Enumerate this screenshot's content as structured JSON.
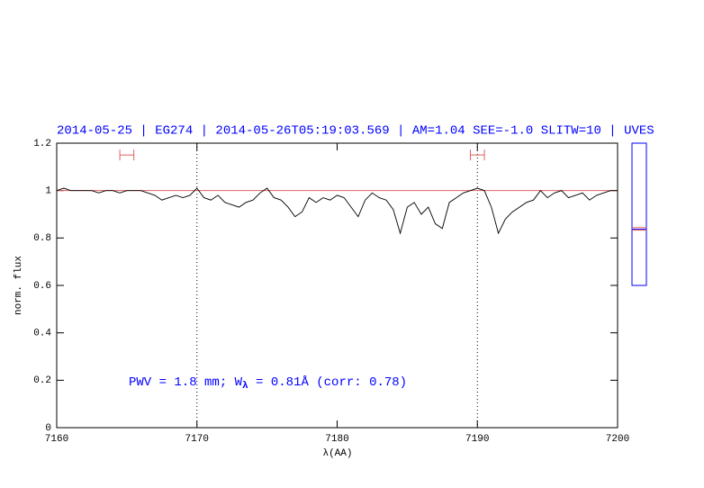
{
  "chart_data": {
    "type": "line",
    "title": "2014-05-25 | EG274 | 2014-05-26T05:19:03.569 | AM=1.04  SEE=-1.0  SLITW=10 | UVES",
    "xlabel": "λ(AA)",
    "ylabel": "norm. flux",
    "annotation": [
      "PWV = 1.8 mm; W",
      "λ",
      " = 0.81Å (corr: 0.78)"
    ],
    "xlim": [
      7160,
      7200
    ],
    "ylim": [
      0,
      1.2
    ],
    "xticks": [
      7160,
      7170,
      7180,
      7190,
      7200
    ],
    "yticks": [
      0,
      0.2,
      0.4,
      0.6,
      0.8,
      1,
      1.2
    ],
    "continuum": {
      "value": 1,
      "color": "#e06060"
    },
    "vlines": [
      7170,
      7190
    ],
    "ranges": [
      {
        "x": [
          7164.5,
          7165.5
        ],
        "y": 1.15
      },
      {
        "x": [
          7189.5,
          7190.5
        ],
        "y": 1.15
      }
    ],
    "range_color": "#e06060",
    "side_panel": {
      "ylim": [
        0.6,
        1.2
      ],
      "color": "#0000ff",
      "lines": [
        {
          "value": 0.844,
          "color": "#e06060"
        },
        {
          "value": 0.837,
          "color": "#0000ff"
        },
        {
          "value": 0.833,
          "color": "#e06060"
        }
      ]
    },
    "series": [
      {
        "color": "#000000",
        "x": [
          7160,
          7160.5,
          7161,
          7161.5,
          7162,
          7162.5,
          7163,
          7163.5,
          7164,
          7164.5,
          7165,
          7165.5,
          7166,
          7166.5,
          7167,
          7167.5,
          7168,
          7168.5,
          7169,
          7169.5,
          7170,
          7170.5,
          7171,
          7171.5,
          7172,
          7172.5,
          7173,
          7173.5,
          7174,
          7174.5,
          7175,
          7175.5,
          7176,
          7176.5,
          7177,
          7177.5,
          7178,
          7178.5,
          7179,
          7179.5,
          7180,
          7180.5,
          7181,
          7181.5,
          7182,
          7182.5,
          7183,
          7183.5,
          7184,
          7184.5,
          7185,
          7185.5,
          7186,
          7186.5,
          7187,
          7187.5,
          7188,
          7188.5,
          7189,
          7189.5,
          7190,
          7190.5,
          7191,
          7191.5,
          7192,
          7192.5,
          7193,
          7193.5,
          7194,
          7194.5,
          7195,
          7195.5,
          7196,
          7196.5,
          7197,
          7197.5,
          7198,
          7198.5,
          7199,
          7199.5,
          7200
        ],
        "values": [
          1.0,
          1.01,
          1.0,
          1.0,
          1.0,
          1.0,
          0.99,
          1.0,
          1.0,
          0.99,
          1.0,
          1.0,
          1.0,
          0.99,
          0.98,
          0.96,
          0.97,
          0.98,
          0.97,
          0.98,
          1.01,
          0.97,
          0.96,
          0.98,
          0.95,
          0.94,
          0.93,
          0.95,
          0.96,
          0.99,
          1.01,
          0.97,
          0.96,
          0.93,
          0.89,
          0.91,
          0.97,
          0.95,
          0.97,
          0.96,
          0.98,
          0.97,
          0.93,
          0.89,
          0.96,
          0.99,
          0.97,
          0.96,
          0.92,
          0.82,
          0.93,
          0.95,
          0.9,
          0.93,
          0.86,
          0.84,
          0.95,
          0.97,
          0.99,
          1.0,
          1.01,
          1.0,
          0.93,
          0.82,
          0.88,
          0.91,
          0.93,
          0.95,
          0.96,
          1.0,
          0.97,
          0.99,
          1.0,
          0.97,
          0.98,
          0.99,
          0.96,
          0.98,
          0.99,
          1.0,
          1.0
        ]
      }
    ]
  }
}
